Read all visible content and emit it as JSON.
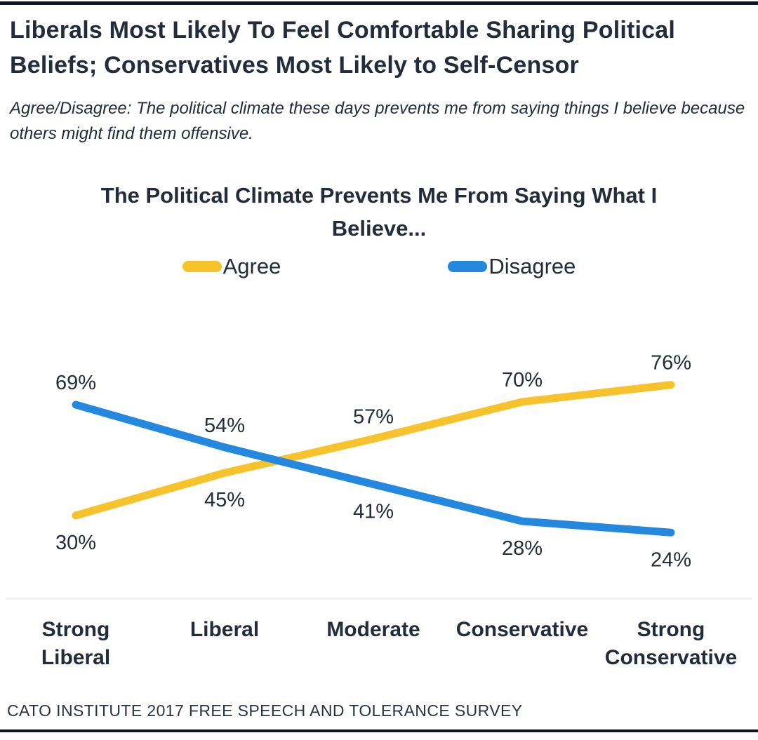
{
  "page": {
    "header_title": "Liberals Most Likely To Feel Comfortable Sharing Political Beliefs; Conservatives Most Likely to Self-Censor",
    "subtitle": "Agree/Disagree: The political climate these days prevents me from saying things I believe because others might find them offensive.",
    "footer": "CATO INSTITUTE 2017 FREE SPEECH AND TOLERANCE SURVEY"
  },
  "chart_data": {
    "type": "line",
    "title": "The Political Climate Prevents Me From Saying What I Believe...",
    "categories": [
      "Strong Liberal",
      "Liberal",
      "Moderate",
      "Conservative",
      "Strong Conservative"
    ],
    "series": [
      {
        "name": "Agree",
        "color": "#F7C32C",
        "values": [
          30,
          45,
          57,
          70,
          76
        ],
        "label_sides": [
          "below",
          "below",
          "above",
          "above",
          "above"
        ]
      },
      {
        "name": "Disagree",
        "color": "#2488DF",
        "values": [
          69,
          54,
          41,
          28,
          24
        ],
        "label_sides": [
          "above",
          "above",
          "below",
          "below",
          "below"
        ]
      }
    ],
    "value_suffix": "%",
    "xlabel": "",
    "ylabel": "",
    "ylim": [
      15,
      85
    ],
    "grid": false,
    "legend_position": "top",
    "axis_line_color": "#ebebf0",
    "text_color": "#232C3B"
  }
}
